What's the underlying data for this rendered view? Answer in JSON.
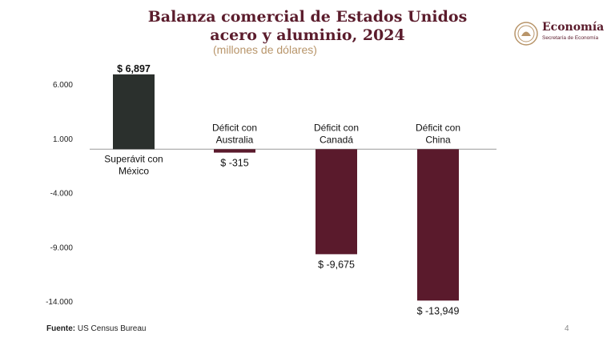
{
  "header": {
    "title_line1": "Balanza comercial de Estados Unidos",
    "title_line2": "acero y aluminio, 2024",
    "subtitle": "(millones de dólares)"
  },
  "logo": {
    "name": "Economía",
    "sub": "Secretaría de Economía",
    "icon": "coat-of-arms-icon"
  },
  "footer": {
    "source_label": "Fuente:",
    "source_text": "US Census Bureau",
    "page_number": "4"
  },
  "colors": {
    "surplus": "#2b302d",
    "deficit": "#5a1a2c",
    "title": "#5b1c2c",
    "subtitle": "#b8956a"
  },
  "chart_data": {
    "type": "bar",
    "title": "Balanza comercial de Estados Unidos acero y aluminio, 2024",
    "ylabel": "millones de dólares",
    "ylim": [
      -14000,
      6000
    ],
    "yticks": [
      "6.000",
      "1.000",
      "-4.000",
      "-9.000",
      "-14.000"
    ],
    "ytick_values": [
      6000,
      1000,
      -4000,
      -9000,
      -14000
    ],
    "grid": false,
    "categories": [
      [
        "Superávit con",
        "México"
      ],
      [
        "Déficit con",
        "Australia"
      ],
      [
        "Déficit con",
        "Canadá"
      ],
      [
        "Déficit con",
        "China"
      ]
    ],
    "values": [
      6897,
      -315,
      -9675,
      -13949
    ],
    "data_labels": [
      "$ 6,897",
      "$ -315",
      "$ -9,675",
      "$ -13,949"
    ]
  }
}
